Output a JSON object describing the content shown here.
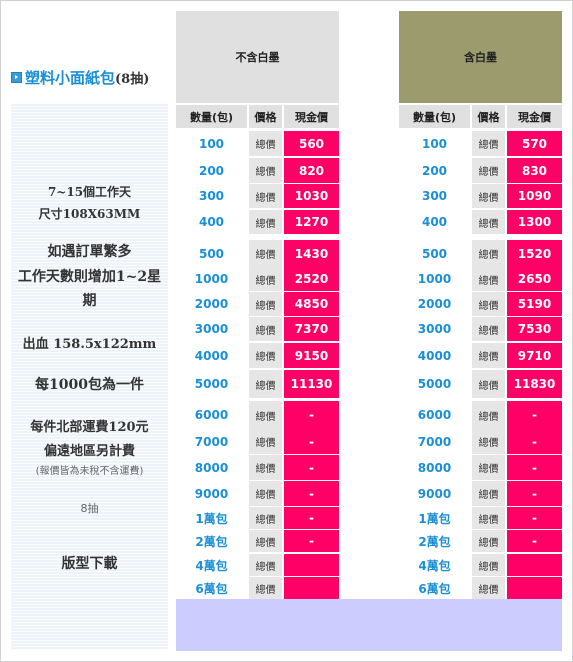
{
  "product": {
    "title": "塑料小面紙包",
    "subtitle": "(8抽)",
    "icon": "arrow-bullet-icon"
  },
  "info": {
    "work_days": "7~15個工作天",
    "size": "尺寸108X63MM",
    "busy_line1": "如遇訂單繁多",
    "busy_line2": "工作天數則增加1~2星",
    "busy_line3": "期",
    "bleed": "出血 158.5x122mm",
    "per_package": "每1000包為一件",
    "shipping_line1": "每件北部運費120元",
    "shipping_line2": "偏遠地區另計費",
    "shipping_note": "(報價皆為未稅不含運費)",
    "sheets": "8抽",
    "template_download": "版型下載"
  },
  "variants": [
    {
      "name": "不含白墨",
      "header_color": "#e0e0e0",
      "columns": [
        "數量(包)",
        "價格",
        "現金價"
      ],
      "rows": [
        {
          "qty": "100",
          "label": "總價",
          "price": "560"
        },
        {
          "qty": "200",
          "label": "總價",
          "price": "820"
        },
        {
          "qty": "300",
          "label": "總價",
          "price": "1030"
        },
        {
          "qty": "400",
          "label": "總價",
          "price": "1270"
        },
        {
          "qty": "500",
          "label": "總價",
          "price": "1430"
        },
        {
          "qty": "1000",
          "label": "總價",
          "price": "2520"
        },
        {
          "qty": "2000",
          "label": "總價",
          "price": "4850"
        },
        {
          "qty": "3000",
          "label": "總價",
          "price": "7370"
        },
        {
          "qty": "4000",
          "label": "總價",
          "price": "9150"
        },
        {
          "qty": "5000",
          "label": "總價",
          "price": "11130"
        },
        {
          "qty": "6000",
          "label": "總價",
          "price": "-"
        },
        {
          "qty": "7000",
          "label": "總價",
          "price": "-"
        },
        {
          "qty": "8000",
          "label": "總價",
          "price": "-"
        },
        {
          "qty": "9000",
          "label": "總價",
          "price": "-"
        },
        {
          "qty": "1萬包",
          "label": "總價",
          "price": "-"
        },
        {
          "qty": "2萬包",
          "label": "總價",
          "price": "-"
        },
        {
          "qty": "4萬包",
          "label": "總價",
          "price": ""
        },
        {
          "qty": "6萬包",
          "label": "總價",
          "price": ""
        }
      ]
    },
    {
      "name": "含白墨",
      "header_color": "#9b9b6e",
      "columns": [
        "數量(包)",
        "價格",
        "現金價"
      ],
      "rows": [
        {
          "qty": "100",
          "label": "總價",
          "price": "570"
        },
        {
          "qty": "200",
          "label": "總價",
          "price": "830"
        },
        {
          "qty": "300",
          "label": "總價",
          "price": "1090"
        },
        {
          "qty": "400",
          "label": "總價",
          "price": "1300"
        },
        {
          "qty": "500",
          "label": "總價",
          "price": "1520"
        },
        {
          "qty": "1000",
          "label": "總價",
          "price": "2650"
        },
        {
          "qty": "2000",
          "label": "總價",
          "price": "5190"
        },
        {
          "qty": "3000",
          "label": "總價",
          "price": "7530"
        },
        {
          "qty": "4000",
          "label": "總價",
          "price": "9710"
        },
        {
          "qty": "5000",
          "label": "總價",
          "price": "11830"
        },
        {
          "qty": "6000",
          "label": "總價",
          "price": "-"
        },
        {
          "qty": "7000",
          "label": "總價",
          "price": "-"
        },
        {
          "qty": "8000",
          "label": "總價",
          "price": "-"
        },
        {
          "qty": "9000",
          "label": "總價",
          "price": "-"
        },
        {
          "qty": "1萬包",
          "label": "總價",
          "price": "-"
        },
        {
          "qty": "2萬包",
          "label": "總價",
          "price": "-"
        },
        {
          "qty": "4萬包",
          "label": "總價",
          "price": ""
        },
        {
          "qty": "6萬包",
          "label": "總價",
          "price": ""
        }
      ]
    }
  ],
  "colors": {
    "price_bg": "#ff0066",
    "qty_text": "#1a8fd6",
    "footer_bg": "#ccccff"
  }
}
